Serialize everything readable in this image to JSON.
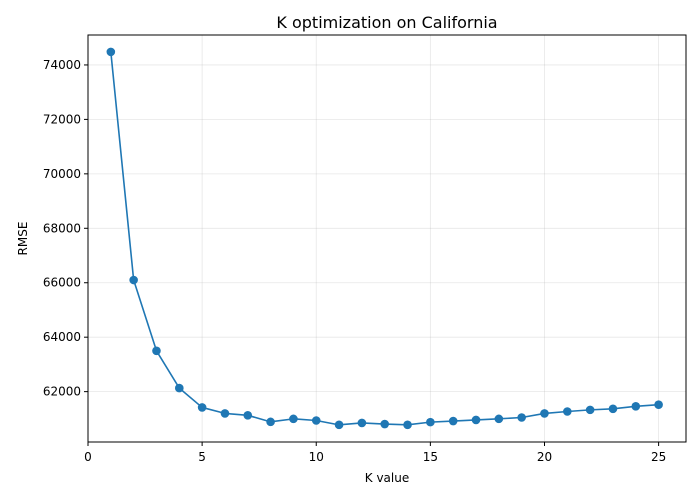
{
  "chart_data": {
    "type": "line",
    "title": "K optimization on California",
    "xlabel": "K value",
    "ylabel": "RMSE",
    "xlim": [
      0,
      26.2
    ],
    "ylim": [
      60150,
      75100
    ],
    "xticks": [
      0,
      5,
      10,
      15,
      20,
      25
    ],
    "yticks": [
      62000,
      64000,
      66000,
      68000,
      70000,
      72000,
      74000
    ],
    "grid": true,
    "color": "#1f77b4",
    "x": [
      1,
      2,
      3,
      4,
      5,
      6,
      7,
      8,
      9,
      10,
      11,
      12,
      13,
      14,
      15,
      16,
      17,
      18,
      19,
      20,
      21,
      22,
      23,
      24,
      25
    ],
    "y": [
      74480,
      66100,
      63500,
      62130,
      61420,
      61200,
      61130,
      60890,
      61000,
      60940,
      60780,
      60850,
      60810,
      60780,
      60880,
      60920,
      60960,
      61000,
      61050,
      61200,
      61270,
      61330,
      61370,
      61460,
      61520
    ]
  }
}
